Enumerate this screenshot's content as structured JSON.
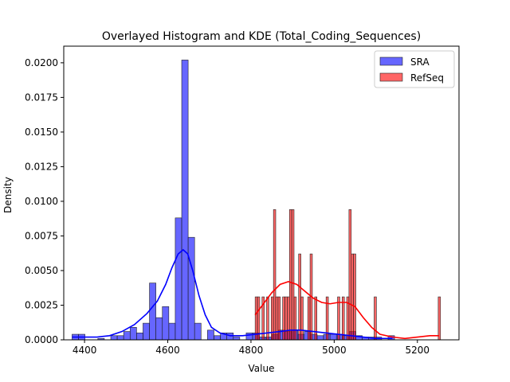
{
  "chart_data": {
    "type": "histogram",
    "title": "Overlayed Histogram and KDE (Total_Coding_Sequences)",
    "xlabel": "Value",
    "ylabel": "Density",
    "xlim": [
      4350,
      5300
    ],
    "ylim": [
      0,
      0.0212
    ],
    "xticks": [
      4400,
      4600,
      4800,
      5000,
      5200
    ],
    "xtick_labels": [
      "4400",
      "4600",
      "4800",
      "5000",
      "5200"
    ],
    "yticks": [
      0,
      0.0025,
      0.005,
      0.0075,
      0.01,
      0.0125,
      0.015,
      0.0175,
      0.02
    ],
    "ytick_labels": [
      "0.0000",
      "0.0025",
      "0.0050",
      "0.0075",
      "0.0100",
      "0.0125",
      "0.0150",
      "0.0175",
      "0.0200"
    ],
    "grid": false,
    "legend_position": "top-right",
    "series": [
      {
        "name": "SRA",
        "color": "#0000ff",
        "bin_width": 15.5,
        "bins": [
          [
            4370,
            0.0004
          ],
          [
            4385.5,
            0.0004
          ],
          [
            4432,
            0.0001
          ],
          [
            4447.5,
            0.0
          ],
          [
            4463,
            0.0003
          ],
          [
            4478.5,
            0.0003
          ],
          [
            4494,
            0.0006
          ],
          [
            4509.5,
            0.0009
          ],
          [
            4525,
            0.0005
          ],
          [
            4540.5,
            0.0012
          ],
          [
            4556,
            0.0041
          ],
          [
            4571.5,
            0.0016
          ],
          [
            4587,
            0.0024
          ],
          [
            4602.5,
            0.0012
          ],
          [
            4618,
            0.0088
          ],
          [
            4633.5,
            0.0202
          ],
          [
            4649,
            0.0074
          ],
          [
            4664.5,
            0.0012
          ],
          [
            4695.5,
            0.0007
          ],
          [
            4711,
            0.0003
          ],
          [
            4726.5,
            0.0005
          ],
          [
            4742,
            0.0005
          ],
          [
            4757.5,
            0.0002
          ],
          [
            4788.5,
            0.0005
          ],
          [
            4804,
            0.0005
          ],
          [
            4819.5,
            0.0002
          ],
          [
            4835,
            0.0002
          ],
          [
            4850.5,
            0.0004
          ],
          [
            4866,
            0.0007
          ],
          [
            4881.5,
            0.0006
          ],
          [
            4897,
            0.0007
          ],
          [
            4912.5,
            0.0004
          ],
          [
            4928,
            0.0006
          ],
          [
            4943.5,
            0.0004
          ],
          [
            4959,
            0.0003
          ],
          [
            4974.5,
            0.0004
          ],
          [
            4990,
            0.0004
          ],
          [
            5005.5,
            0.0004
          ],
          [
            5021,
            0.0003
          ],
          [
            5036.5,
            0.0006
          ],
          [
            5052,
            0.0003
          ],
          [
            5067.5,
            0.0002
          ],
          [
            5083,
            0.0002
          ],
          [
            5098.5,
            0.0002
          ],
          [
            5129.5,
            0.0003
          ]
        ],
        "kde": [
          [
            4370,
            0.0002
          ],
          [
            4400,
            0.0002
          ],
          [
            4430,
            0.0002
          ],
          [
            4460,
            0.0003
          ],
          [
            4490,
            0.0006
          ],
          [
            4520,
            0.0011
          ],
          [
            4550,
            0.0019
          ],
          [
            4575,
            0.0028
          ],
          [
            4595,
            0.004
          ],
          [
            4610,
            0.0052
          ],
          [
            4625,
            0.0062
          ],
          [
            4637,
            0.0065
          ],
          [
            4648,
            0.0062
          ],
          [
            4660,
            0.005
          ],
          [
            4675,
            0.0032
          ],
          [
            4690,
            0.0018
          ],
          [
            4705,
            0.0009
          ],
          [
            4725,
            0.0005
          ],
          [
            4750,
            0.0003
          ],
          [
            4780,
            0.0003
          ],
          [
            4810,
            0.0004
          ],
          [
            4840,
            0.0005
          ],
          [
            4870,
            0.0006
          ],
          [
            4895,
            0.0007
          ],
          [
            4920,
            0.0007
          ],
          [
            4950,
            0.0006
          ],
          [
            4980,
            0.0005
          ],
          [
            5010,
            0.0004
          ],
          [
            5040,
            0.0003
          ],
          [
            5070,
            0.0002
          ],
          [
            5100,
            0.0001
          ],
          [
            5140,
            0.0001
          ]
        ]
      },
      {
        "name": "RefSeq",
        "color": "#ff0000",
        "bin_width": 5.5,
        "bins": [
          [
            4810,
            0.0031
          ],
          [
            4815.5,
            0.0031
          ],
          [
            4826.5,
            0.0031
          ],
          [
            4837.5,
            0.0031
          ],
          [
            4848.5,
            0.0031
          ],
          [
            4854,
            0.0094
          ],
          [
            4859.5,
            0.0031
          ],
          [
            4865,
            0.0031
          ],
          [
            4876,
            0.0031
          ],
          [
            4881.5,
            0.0031
          ],
          [
            4887,
            0.0031
          ],
          [
            4892.5,
            0.0094
          ],
          [
            4898,
            0.0094
          ],
          [
            4903.5,
            0.0031
          ],
          [
            4914.5,
            0.0062
          ],
          [
            4920,
            0.0031
          ],
          [
            4936.5,
            0.0031
          ],
          [
            4942,
            0.0062
          ],
          [
            4953,
            0.0031
          ],
          [
            4980.5,
            0.0031
          ],
          [
            5008,
            0.0031
          ],
          [
            5019,
            0.0031
          ],
          [
            5030,
            0.0031
          ],
          [
            5035.5,
            0.0094
          ],
          [
            5041,
            0.0062
          ],
          [
            5046.5,
            0.0062
          ],
          [
            5096,
            0.0031
          ],
          [
            5250,
            0.0031
          ]
        ],
        "kde": [
          [
            4810,
            0.0018
          ],
          [
            4830,
            0.0026
          ],
          [
            4850,
            0.0034
          ],
          [
            4870,
            0.004
          ],
          [
            4890,
            0.0042
          ],
          [
            4910,
            0.004
          ],
          [
            4930,
            0.0035
          ],
          [
            4950,
            0.003
          ],
          [
            4970,
            0.0027
          ],
          [
            4990,
            0.0026
          ],
          [
            5010,
            0.0027
          ],
          [
            5030,
            0.0027
          ],
          [
            5050,
            0.0024
          ],
          [
            5070,
            0.0016
          ],
          [
            5090,
            0.0009
          ],
          [
            5110,
            0.0004
          ],
          [
            5140,
            0.0002
          ],
          [
            5170,
            0.0001
          ],
          [
            5200,
            0.0002
          ],
          [
            5230,
            0.0003
          ],
          [
            5252,
            0.0003
          ]
        ]
      }
    ]
  }
}
